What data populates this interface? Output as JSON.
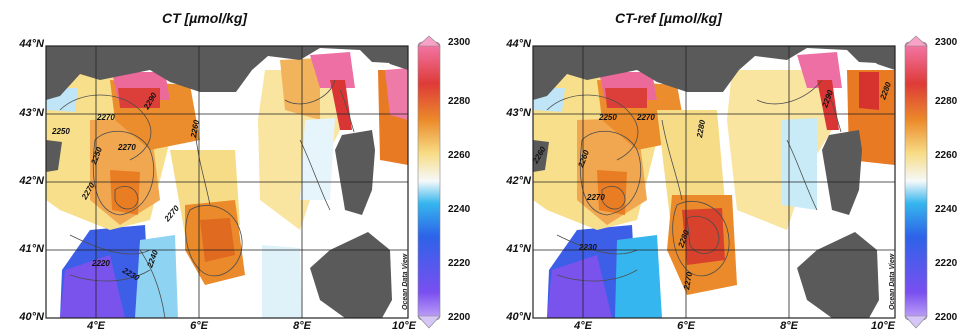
{
  "panels": [
    {
      "title": "CT [µmol/kg]",
      "contours": [
        "2250",
        "2270",
        "2250",
        "2270",
        "2270",
        "2260",
        "2270",
        "2220",
        "2230",
        "2240",
        "2290"
      ],
      "credit": "Ocean Data View"
    },
    {
      "title": "CT-ref [µmol/kg]",
      "contours": [
        "2260",
        "2250",
        "2270",
        "2280",
        "2260",
        "2270",
        "2290",
        "2230",
        "2280",
        "2270",
        "2280"
      ],
      "credit": "Ocean Data View"
    }
  ],
  "axes": {
    "lat_ticks": [
      "44°N",
      "43°N",
      "42°N",
      "41°N",
      "40°N"
    ],
    "lon_ticks": [
      "4°E",
      "6°E",
      "8°E",
      "10°E"
    ]
  },
  "colorbar": {
    "ticks": [
      "2300",
      "2280",
      "2260",
      "2240",
      "2220",
      "2200"
    ],
    "colors": [
      "#8a4ff0",
      "#2d63e8",
      "#32b8ee",
      "#f5f8f9",
      "#f5d474",
      "#e5741e",
      "#dc3a3a",
      "#ea6aa0"
    ]
  },
  "colors": {
    "land": "#5a5a5a",
    "sea": "#ffffff"
  }
}
